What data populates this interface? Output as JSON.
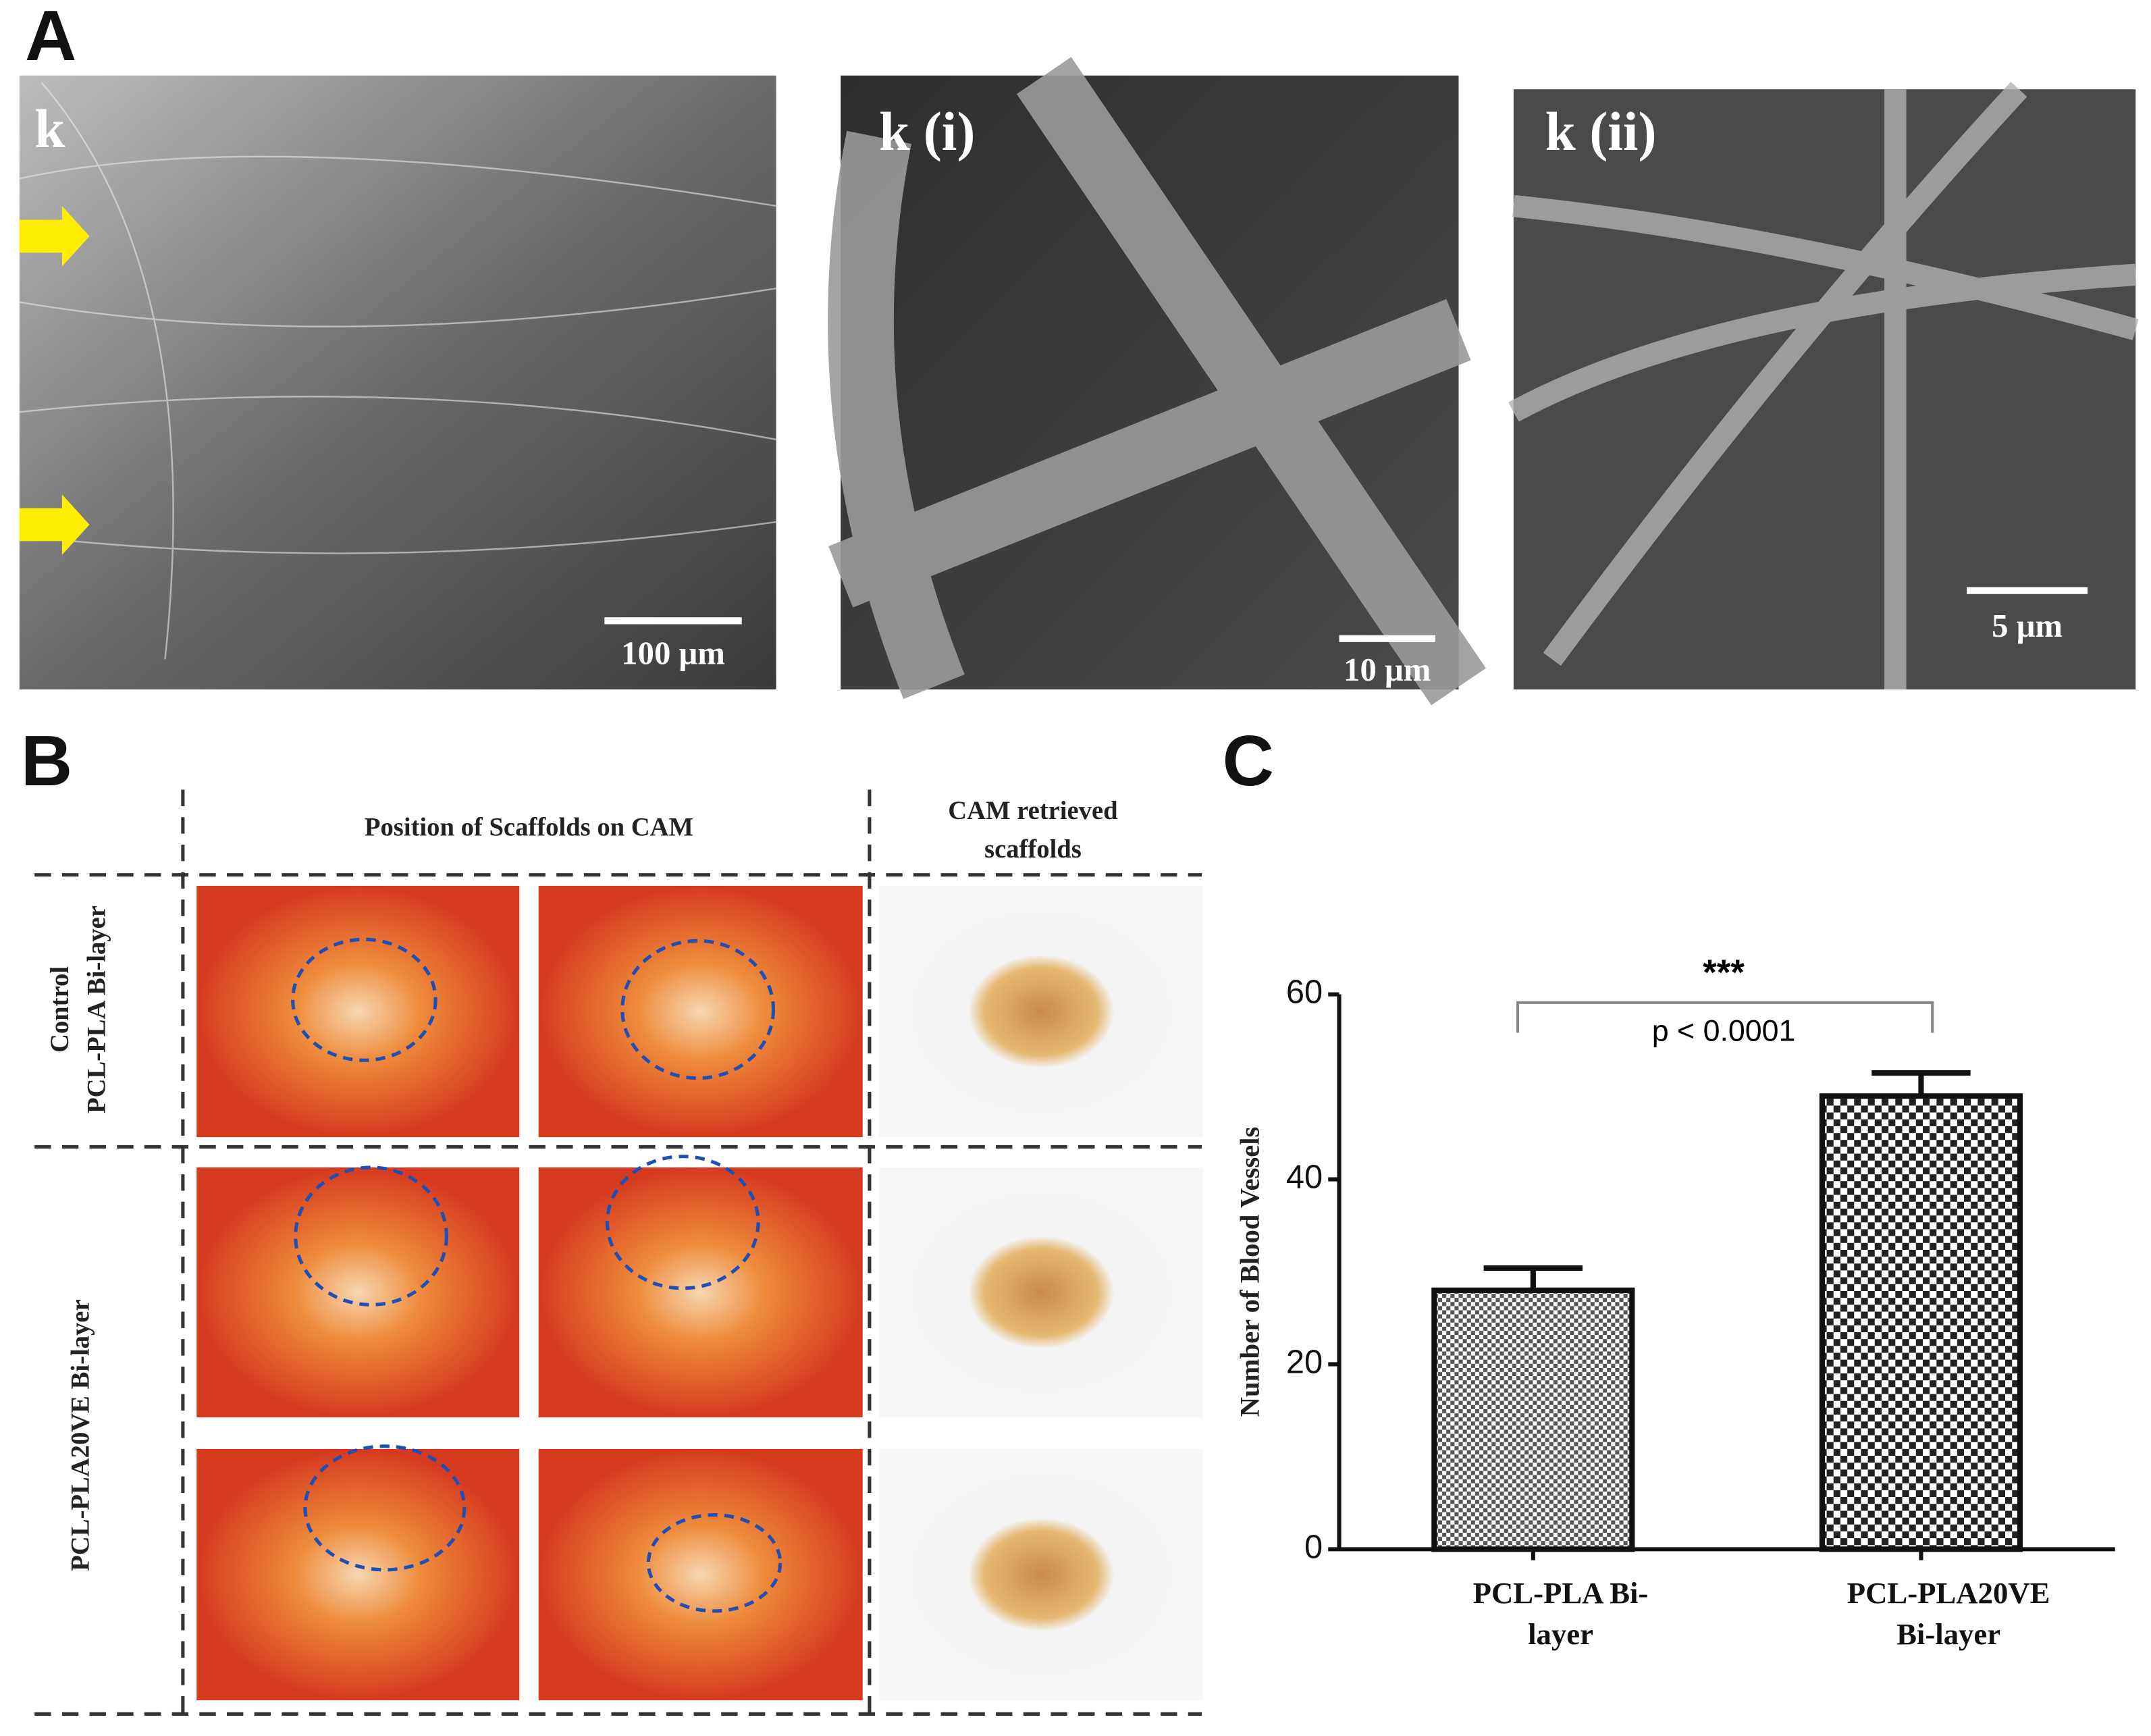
{
  "panels": {
    "A": {
      "label": "A",
      "images": [
        {
          "label": "k",
          "scale_bar": "100 μm"
        },
        {
          "label": "k (i)",
          "scale_bar": "10 μm"
        },
        {
          "label": "k (ii)",
          "scale_bar": "5 μm"
        }
      ]
    },
    "B": {
      "label": "B",
      "col_header_1": "Position of Scaffolds on CAM",
      "col_header_2": [
        "CAM retrieved",
        "scaffolds"
      ],
      "row_label_1": [
        "Control",
        "PCL-PLA Bi-layer"
      ],
      "row_label_2": "PCL-PLA20VE Bi-layer"
    },
    "C": {
      "label": "C"
    }
  },
  "chart_data": {
    "type": "bar",
    "categories": [
      [
        "PCL-PLA  Bi-",
        "layer"
      ],
      [
        "PCL-PLA20VE",
        "Bi-layer"
      ]
    ],
    "values": [
      28,
      49
    ],
    "errors": [
      2.4,
      2.5
    ],
    "ylabel": "Number of Blood Vessels",
    "ylim": [
      0,
      60
    ],
    "yticks": [
      0,
      20,
      40,
      60
    ],
    "significance": "***",
    "p_value": "p < 0.0001"
  }
}
